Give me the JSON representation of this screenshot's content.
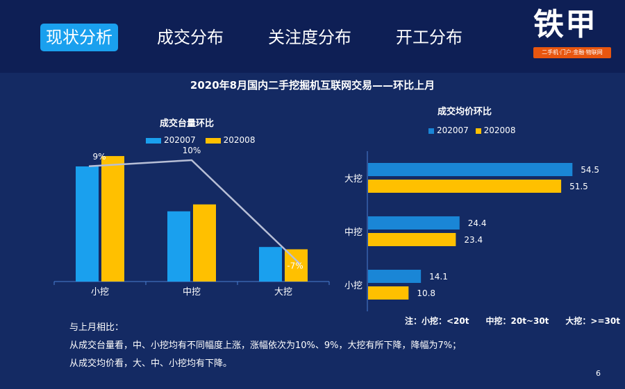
{
  "nav": {
    "tabs": [
      "现状分析",
      "成交分布",
      "关注度分布",
      "开工分布"
    ],
    "active": 0
  },
  "logo": {
    "main": "铁甲",
    "tagline": "二手机·门户·金融·物联网"
  },
  "title": "2020年8月国内二手挖掘机互联网交易——环比上月",
  "colors": {
    "series_2020_07": "#1aa0ee",
    "series_2020_08": "#ffc000",
    "line": "#b8bfd6",
    "bar_h_2020_07": "#1a86d6"
  },
  "chart_data": [
    {
      "type": "bar",
      "title": "成交台量环比",
      "categories": [
        "小挖",
        "中挖",
        "大挖"
      ],
      "series": [
        {
          "name": "202007",
          "values": [
            100,
            61,
            30
          ]
        },
        {
          "name": "202008",
          "values": [
            109,
            67,
            28
          ]
        }
      ],
      "line_series": {
        "values": [
          9,
          10,
          -7
        ],
        "labels": [
          "9%",
          "10%",
          "-7%"
        ]
      },
      "legend_position": "top"
    },
    {
      "type": "bar",
      "orientation": "horizontal",
      "title": "成交均价环比",
      "categories": [
        "大挖",
        "中挖",
        "小挖"
      ],
      "series": [
        {
          "name": "202007",
          "values": [
            54.5,
            24.4,
            14.1
          ]
        },
        {
          "name": "202008",
          "values": [
            51.5,
            23.4,
            10.8
          ]
        }
      ],
      "xlim": [
        0,
        60
      ],
      "legend_position": "top"
    }
  ],
  "note": "注：小挖：<20t　　中挖：20t~30t　　大挖：>=30t",
  "remarks": [
    "与上月相比：",
    "从成交台量看，中、小挖均有不同幅度上涨，涨幅依次为10%、9%，大挖有所下降，降幅为7%；",
    "从成交均价看，大、中、小挖均有下降。"
  ],
  "page_number": "6"
}
